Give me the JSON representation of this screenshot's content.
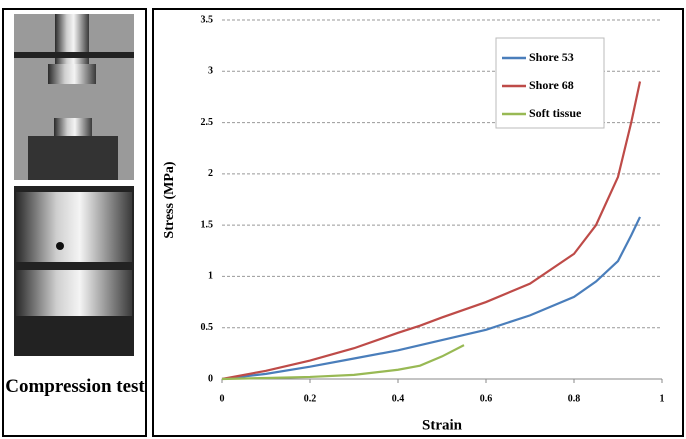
{
  "panel_label": "Compression test",
  "chart_data": {
    "type": "line",
    "xlabel": "Strain",
    "ylabel": "Stress (MPa)",
    "xlim": [
      0,
      1
    ],
    "xticks": [
      0,
      0.2,
      0.4,
      0.6,
      0.8,
      1
    ],
    "ylim": [
      0,
      3.5
    ],
    "yticks": [
      0,
      0.5,
      1,
      1.5,
      2,
      2.5,
      3,
      3.5
    ],
    "grid": true,
    "legend": "upper right",
    "series": [
      {
        "name": "Shore 53",
        "color": "#4a7ebb",
        "x": [
          0,
          0.1,
          0.2,
          0.3,
          0.4,
          0.5,
          0.6,
          0.7,
          0.8,
          0.85,
          0.9,
          0.93,
          0.95
        ],
        "values": [
          0,
          0.05,
          0.12,
          0.2,
          0.28,
          0.38,
          0.48,
          0.62,
          0.8,
          0.95,
          1.15,
          1.4,
          1.58
        ]
      },
      {
        "name": "Shore 68",
        "color": "#be4b48",
        "x": [
          0,
          0.1,
          0.2,
          0.3,
          0.4,
          0.45,
          0.5,
          0.6,
          0.7,
          0.8,
          0.85,
          0.9,
          0.93,
          0.95
        ],
        "values": [
          0,
          0.08,
          0.18,
          0.3,
          0.45,
          0.52,
          0.6,
          0.75,
          0.93,
          1.22,
          1.5,
          1.97,
          2.5,
          2.9
        ]
      },
      {
        "name": "Soft tissue",
        "color": "#98b954",
        "x": [
          0,
          0.1,
          0.2,
          0.3,
          0.4,
          0.45,
          0.5,
          0.55
        ],
        "values": [
          0,
          0.01,
          0.02,
          0.04,
          0.09,
          0.13,
          0.22,
          0.33
        ]
      }
    ]
  }
}
